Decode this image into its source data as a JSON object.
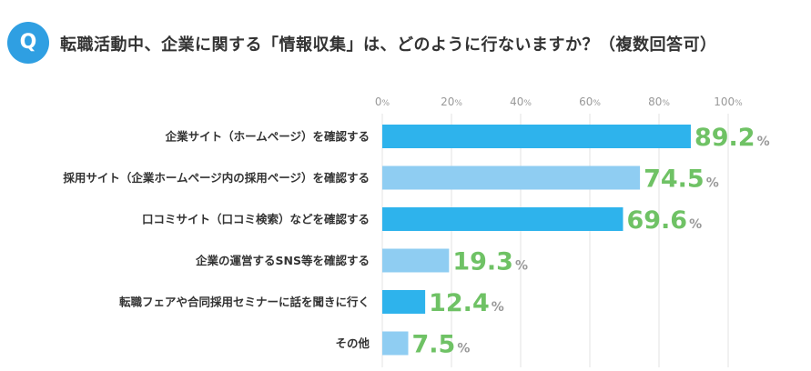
{
  "header": {
    "badge": "Q",
    "question": "転職活動中、企業に関する「情報収集」は、どのように行ないますか？（複数回答可）"
  },
  "colors": {
    "dark_bar": "#2eb3ec",
    "light_bar": "#8fcdf2",
    "value_text": "#6fc265",
    "grid": "#e3e3e3",
    "badge": "#2f9fe2"
  },
  "chart_data": {
    "type": "bar",
    "orientation": "horizontal",
    "categories": [
      "企業サイト（ホームページ）を確認する",
      "採用サイト（企業ホームページ内の採用ページ）を確認する",
      "口コミサイト（口コミ検索）などを確認する",
      "企業の運営するSNS等を確認する",
      "転職フェアや合同採用セミナーに話を聞きに行く",
      "その他"
    ],
    "values": [
      89.2,
      74.5,
      69.6,
      19.3,
      12.4,
      7.5
    ],
    "value_labels": [
      "89.2",
      "74.5",
      "69.6",
      "19.3",
      "12.4",
      "7.5"
    ],
    "bar_shades": [
      "dark",
      "light",
      "dark",
      "light",
      "dark",
      "light"
    ],
    "unit": "%",
    "xlim": [
      0,
      100
    ],
    "ticks": [
      0,
      20,
      40,
      60,
      80,
      100
    ],
    "tick_labels": [
      "0",
      "20",
      "40",
      "60",
      "80",
      "100"
    ],
    "grid": true
  }
}
